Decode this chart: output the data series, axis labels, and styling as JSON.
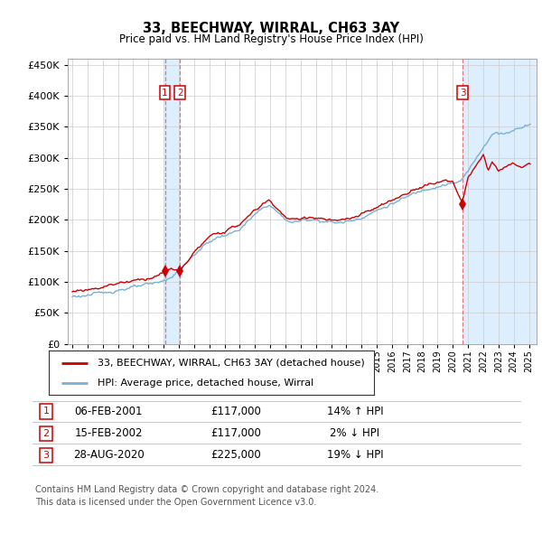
{
  "title": "33, BEECHWAY, WIRRAL, CH63 3AY",
  "subtitle": "Price paid vs. HM Land Registry's House Price Index (HPI)",
  "ytick_values": [
    0,
    50000,
    100000,
    150000,
    200000,
    250000,
    300000,
    350000,
    400000,
    450000
  ],
  "ylim": [
    0,
    460000
  ],
  "xlim_start": 1994.7,
  "xlim_end": 2025.5,
  "legend_line1": "33, BEECHWAY, WIRRAL, CH63 3AY (detached house)",
  "legend_line2": "HPI: Average price, detached house, Wirral",
  "sale1_date": "06-FEB-2001",
  "sale1_price": 117000,
  "sale1_hpi": "14% ↑ HPI",
  "sale2_date": "15-FEB-2002",
  "sale2_price": 117000,
  "sale2_hpi": "2% ↓ HPI",
  "sale3_date": "28-AUG-2020",
  "sale3_price": 225000,
  "sale3_hpi": "19% ↓ HPI",
  "footer1": "Contains HM Land Registry data © Crown copyright and database right 2024.",
  "footer2": "This data is licensed under the Open Government Licence v3.0.",
  "hpi_color": "#7ab0d4",
  "price_color": "#cc0000",
  "vline_color": "#dd4444",
  "bg_color": "#ffffff",
  "grid_color": "#cccccc",
  "sale1_x": 2001.08,
  "sale2_x": 2002.08,
  "sale3_x": 2020.65,
  "span_color": "#ddeeff"
}
